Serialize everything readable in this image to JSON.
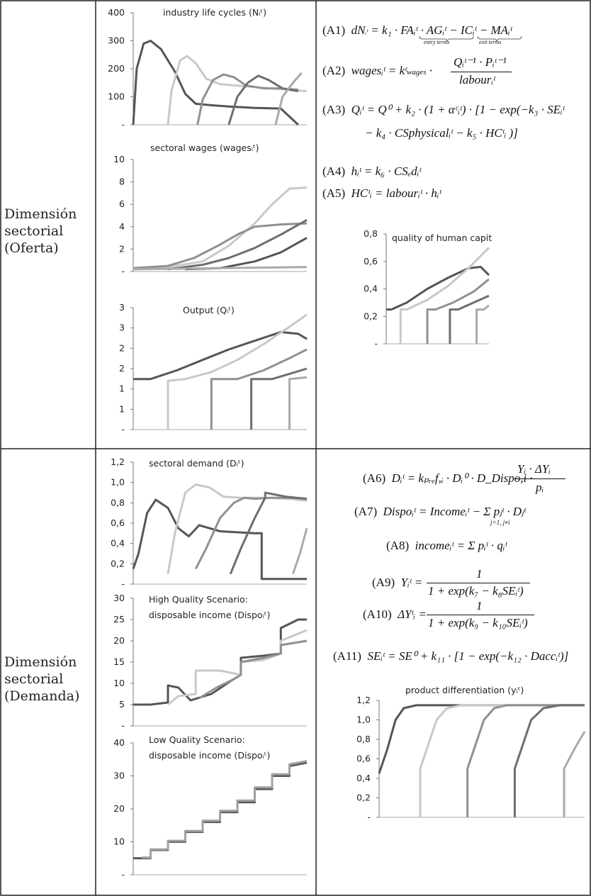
{
  "rows": {
    "supply": {
      "line1": "Dimensión",
      "line2": "sectorial",
      "line3": "(Oferta)"
    },
    "demand": {
      "line1": "Dimensión",
      "line2": "sectorial",
      "line3": "(Demanda)"
    }
  },
  "equations": {
    "a1_id": "(A1)",
    "a1_lhs": "dN",
    "a1_rhs": "= k₁ · FAᵢᵗ · AGᵢᵗ − ICᵢᵗ − MAᵢᵗ",
    "a1_entry": "entry terms",
    "a1_exit": "exit terms",
    "a2_id": "(A2)",
    "a2_lhs": "wagesᵢᵗ = kᵗ",
    "a2_sub": "wages",
    "a2_num": "Qᵢᵗ⁻¹ · Pᵢᵗ⁻¹",
    "a2_den": "labourᵢᵗ",
    "a3_id": "(A3)",
    "a3_line1": "Qᵢᵗ = Q⁰ + k₂ · (1 + αᶜᵢᵗ) · [1 − exp(−k₃ · SEᵢᵗ",
    "a3_line2": "− k₄ · CSphysicalᵢᵗ − k₅ · HCᵗᵢ )]",
    "a4_id": "(A4)",
    "a4_body": "hᵢᵗ = k₆ · CSₑdᵢᵗ",
    "a5_id": "(A5)",
    "a5_body": "HCᵗᵢ = labourᵢᵗ · hᵢᵗ",
    "a6_id": "(A6)",
    "a6_lhs": "Dᵢᵗ = kₚᵣₑf,ᵢ · Dᵢ⁰ · D_Dispo,i ·",
    "a6_num": "Yᵢ · ΔYᵢ",
    "a6_den": "pᵢ",
    "a7_id": "(A7)",
    "a7_body": "Dispoᵢᵗ = Incomeᵢᵗ − Σ pⱼᵗ · Dⱼᵗ",
    "a7_sum": "j=1, j≠i",
    "a8_id": "(A8)",
    "a8_body": "incomeᵢᵗ = Σ pᵢᵗ · qᵢᵗ",
    "a9_id": "(A9)",
    "a9_lhs": "Yᵢᵗ =",
    "a9_num": "1",
    "a9_den": "1 + exp(k₇ − k₈SEᵢᵗ)",
    "a10_id": "(A10)",
    "a10_lhs": "ΔYᵗᵢ =",
    "a10_num": "1",
    "a10_den": "1 + exp(k₉ − k₁₀SEᵢᵗ)",
    "a11_id": "(A11)",
    "a11_body": "SEᵢᵗ = SE⁰ + k₁₁ · [1 − exp(−k₁₂ · Daccᵢᵗ)]"
  },
  "chart_data": [
    {
      "id": "life",
      "type": "line",
      "title": "industry life cycles (Nᵢᵗ)",
      "ylim": [
        0,
        400
      ],
      "yticks": [
        "400",
        "300",
        "200",
        "100",
        "-"
      ],
      "series": [
        {
          "color": "#555555",
          "x": [
            0,
            0.02,
            0.06,
            0.1,
            0.16,
            0.24,
            0.3,
            0.36,
            0.44,
            0.55,
            0.7,
            0.85,
            0.95
          ],
          "y": [
            0,
            200,
            290,
            300,
            270,
            190,
            110,
            75,
            70,
            65,
            60,
            58,
            0
          ]
        },
        {
          "color": "#c8c8c8",
          "x": [
            0.2,
            0.22,
            0.27,
            0.31,
            0.36,
            0.42,
            0.5,
            0.6,
            0.7,
            0.8,
            0.9,
            1.0
          ],
          "y": [
            0,
            120,
            230,
            245,
            220,
            165,
            145,
            140,
            135,
            130,
            125,
            120
          ]
        },
        {
          "color": "#909090",
          "x": [
            0.37,
            0.4,
            0.46,
            0.52,
            0.58,
            0.65,
            0.75,
            0.85,
            0.95
          ],
          "y": [
            0,
            90,
            160,
            180,
            170,
            140,
            130,
            130,
            125
          ]
        },
        {
          "color": "#6e6e6e",
          "x": [
            0.55,
            0.6,
            0.66,
            0.72,
            0.78,
            0.86,
            0.95
          ],
          "y": [
            0,
            100,
            150,
            175,
            160,
            130,
            120
          ]
        },
        {
          "color": "#a8a8a8",
          "x": [
            0.82,
            0.86,
            0.92,
            0.97
          ],
          "y": [
            0,
            100,
            150,
            185
          ]
        }
      ]
    },
    {
      "id": "wages",
      "type": "line",
      "title": "sectoral wages (wagesᵢᵗ)",
      "ylim": [
        0,
        10
      ],
      "yticks": [
        "10",
        "8",
        "6",
        "4",
        "2",
        "-"
      ],
      "series": [
        {
          "color": "#c8c8c8",
          "x": [
            0,
            0.2,
            0.4,
            0.55,
            0.7,
            0.8,
            0.9,
            1.0
          ],
          "y": [
            0.3,
            0.4,
            0.9,
            2.3,
            4.3,
            6.0,
            7.4,
            7.5
          ]
        },
        {
          "color": "#909090",
          "x": [
            0,
            0.2,
            0.35,
            0.5,
            0.6,
            0.7,
            0.85,
            1.0
          ],
          "y": [
            0.3,
            0.5,
            1.2,
            2.4,
            3.3,
            4.0,
            4.2,
            4.3
          ]
        },
        {
          "color": "#6e6e6e",
          "x": [
            0.2,
            0.4,
            0.55,
            0.7,
            0.85,
            1.0
          ],
          "y": [
            0.2,
            0.6,
            1.2,
            2.1,
            3.3,
            4.6
          ]
        },
        {
          "color": "#555555",
          "x": [
            0.3,
            0.5,
            0.7,
            0.85,
            1.0
          ],
          "y": [
            0.2,
            0.3,
            0.9,
            1.7,
            3.0
          ]
        },
        {
          "color": "#aaaaaa",
          "x": [
            0.0,
            0.5,
            1.0
          ],
          "y": [
            0.2,
            0.3,
            0.4
          ]
        }
      ]
    },
    {
      "id": "output",
      "type": "line",
      "title": "Output (Qᵢᵗ)",
      "ylim": [
        0,
        3.5
      ],
      "yticks": [
        "3",
        "3",
        "2",
        "2",
        "1",
        "1",
        "-"
      ],
      "series": [
        {
          "color": "#555555",
          "x": [
            0,
            0.1,
            0.25,
            0.4,
            0.55,
            0.7,
            0.85,
            0.95,
            1.0
          ],
          "y": [
            1.45,
            1.45,
            1.7,
            2.0,
            2.3,
            2.55,
            2.8,
            2.75,
            2.6
          ]
        },
        {
          "color": "#c8c8c8",
          "x": [
            0.2,
            0.2,
            0.3,
            0.45,
            0.6,
            0.75,
            0.9,
            1.0
          ],
          "y": [
            0,
            1.4,
            1.45,
            1.65,
            2.0,
            2.45,
            2.95,
            3.3
          ]
        },
        {
          "color": "#909090",
          "x": [
            0.45,
            0.45,
            0.6,
            0.75,
            0.9,
            1.0
          ],
          "y": [
            0,
            1.45,
            1.45,
            1.7,
            2.05,
            2.3
          ]
        },
        {
          "color": "#6e6e6e",
          "x": [
            0.68,
            0.68,
            0.8,
            0.9,
            1.0
          ],
          "y": [
            0,
            1.45,
            1.45,
            1.6,
            1.75
          ]
        },
        {
          "color": "#aaaaaa",
          "x": [
            0.9,
            0.9,
            1.0
          ],
          "y": [
            0,
            1.45,
            1.5
          ]
        }
      ]
    },
    {
      "id": "human",
      "type": "line",
      "title": "quality of human capital (hᵢᵗ)",
      "ylim": [
        0,
        0.8
      ],
      "yticks": [
        "0,8",
        "0,6",
        "0,4",
        "0,2",
        "-"
      ],
      "series": [
        {
          "color": "#555555",
          "x": [
            0,
            0.05,
            0.2,
            0.4,
            0.6,
            0.8,
            0.92,
            1.0
          ],
          "y": [
            0.25,
            0.25,
            0.3,
            0.4,
            0.48,
            0.55,
            0.56,
            0.5
          ]
        },
        {
          "color": "#c8c8c8",
          "x": [
            0.14,
            0.14,
            0.2,
            0.4,
            0.6,
            0.8,
            1.0
          ],
          "y": [
            0,
            0.25,
            0.25,
            0.32,
            0.42,
            0.55,
            0.7
          ]
        },
        {
          "color": "#909090",
          "x": [
            0.4,
            0.4,
            0.48,
            0.65,
            0.85,
            1.0
          ],
          "y": [
            0,
            0.25,
            0.25,
            0.3,
            0.38,
            0.47
          ]
        },
        {
          "color": "#6e6e6e",
          "x": [
            0.62,
            0.62,
            0.7,
            0.85,
            1.0
          ],
          "y": [
            0,
            0.25,
            0.25,
            0.3,
            0.35
          ]
        },
        {
          "color": "#aaaaaa",
          "x": [
            0.88,
            0.88,
            0.95,
            1.0
          ],
          "y": [
            0,
            0.25,
            0.25,
            0.28
          ]
        }
      ]
    },
    {
      "id": "demand",
      "type": "line",
      "title": "sectoral demand (Dᵢᵗ)",
      "ylim": [
        0,
        1.2
      ],
      "yticks": [
        "1,2",
        "1,0",
        "0,8",
        "0,6",
        "0,4",
        "0,2",
        "-"
      ],
      "series": [
        {
          "color": "#555555",
          "x": [
            0,
            0.03,
            0.08,
            0.13,
            0.2,
            0.26,
            0.32,
            0.38,
            0.5,
            0.7,
            0.74,
            0.74,
            1.0
          ],
          "y": [
            0.15,
            0.3,
            0.7,
            0.83,
            0.75,
            0.55,
            0.47,
            0.58,
            0.52,
            0.5,
            0.5,
            0.05,
            0.05
          ]
        },
        {
          "color": "#c8c8c8",
          "x": [
            0.2,
            0.24,
            0.3,
            0.36,
            0.44,
            0.52,
            0.62,
            0.75,
            0.9,
            1.0
          ],
          "y": [
            0.1,
            0.5,
            0.9,
            0.98,
            0.95,
            0.86,
            0.85,
            0.85,
            0.84,
            0.82
          ]
        },
        {
          "color": "#909090",
          "x": [
            0.36,
            0.42,
            0.5,
            0.58,
            0.64,
            0.7,
            0.8,
            0.9,
            1.0
          ],
          "y": [
            0.15,
            0.35,
            0.65,
            0.8,
            0.85,
            0.84,
            0.85,
            0.85,
            0.84
          ]
        },
        {
          "color": "#6e6e6e",
          "x": [
            0.56,
            0.62,
            0.7,
            0.76,
            0.76,
            0.88,
            1.0
          ],
          "y": [
            0.1,
            0.35,
            0.65,
            0.85,
            0.9,
            0.86,
            0.84
          ]
        },
        {
          "color": "#aaaaaa",
          "x": [
            0.92,
            0.96,
            1.0
          ],
          "y": [
            0.1,
            0.3,
            0.55
          ]
        }
      ]
    },
    {
      "id": "hq",
      "type": "line",
      "title": "High Quality Scenario:",
      "title2": "disposable income (Dispoᵢᵗ)",
      "ylim": [
        0,
        30
      ],
      "yticks": [
        "30",
        "25",
        "20",
        "15",
        "10",
        "5",
        "-"
      ],
      "series": [
        {
          "color": "#555555",
          "x": [
            0,
            0.1,
            0.2,
            0.2,
            0.26,
            0.33,
            0.33,
            0.45,
            0.56,
            0.62,
            0.62,
            0.75,
            0.85,
            0.85,
            0.95,
            1.0
          ],
          "y": [
            5,
            5,
            5.5,
            9.5,
            9,
            6,
            6,
            7.5,
            10.5,
            12,
            16,
            16.5,
            17,
            23,
            25,
            25
          ]
        },
        {
          "color": "#c8c8c8",
          "x": [
            0.2,
            0.26,
            0.36,
            0.36,
            0.5,
            0.62,
            0.62,
            0.75,
            0.85,
            0.85,
            1.0
          ],
          "y": [
            5,
            7,
            7.5,
            13,
            13,
            12,
            15,
            15.5,
            17,
            20,
            22.5
          ]
        },
        {
          "color": "#909090",
          "x": [
            0.38,
            0.48,
            0.58,
            0.62,
            0.62,
            0.75,
            0.85,
            0.85,
            1.0
          ],
          "y": [
            6.5,
            9,
            11,
            12,
            15,
            16,
            17,
            19,
            20
          ]
        }
      ]
    },
    {
      "id": "lq",
      "type": "line",
      "title": "Low Quality Scenario:",
      "title2": "disposable income (Dispoᵢᵗ)",
      "ylim": [
        0,
        40
      ],
      "yticks": [
        "40",
        "30",
        "20",
        "10",
        "-"
      ],
      "series": [
        {
          "color": "#555555",
          "x": [
            0,
            0.1,
            0.1,
            0.2,
            0.2,
            0.3,
            0.3,
            0.4,
            0.4,
            0.5,
            0.5,
            0.6,
            0.6,
            0.7,
            0.7,
            0.8,
            0.8,
            0.9,
            0.9,
            1.0
          ],
          "y": [
            5,
            5,
            7.5,
            7.5,
            10,
            10,
            13,
            13,
            16,
            16,
            19,
            19,
            22,
            22,
            26,
            26,
            30,
            30,
            33,
            34
          ]
        },
        {
          "color": "#a0a0a0",
          "x": [
            0.05,
            0.1,
            0.1,
            0.2,
            0.2,
            0.3,
            0.3,
            0.4,
            0.4,
            0.5,
            0.5,
            0.6,
            0.6,
            0.7,
            0.7,
            0.8,
            0.8,
            0.9,
            0.9,
            1.0
          ],
          "y": [
            5.2,
            5.2,
            7.7,
            7.7,
            10.3,
            10.3,
            13.3,
            13.3,
            16.4,
            16.4,
            19.4,
            19.4,
            22.5,
            22.5,
            26.5,
            26.5,
            30.5,
            30.5,
            33.5,
            34.5
          ]
        }
      ]
    },
    {
      "id": "diff",
      "type": "line",
      "title": "product differentiation (yᵢᵗ)",
      "ylim": [
        0,
        1.2
      ],
      "yticks": [
        "1,2",
        "1,0",
        "0,8",
        "0,6",
        "0,4",
        "0,2",
        "-"
      ],
      "series": [
        {
          "color": "#555555",
          "x": [
            0,
            0.04,
            0.08,
            0.12,
            0.18,
            0.3,
            1.0
          ],
          "y": [
            0.45,
            0.7,
            1.0,
            1.12,
            1.15,
            1.15,
            1.15
          ]
        },
        {
          "color": "#c8c8c8",
          "x": [
            0.2,
            0.2,
            0.24,
            0.28,
            0.33,
            0.4,
            0.5,
            1.0
          ],
          "y": [
            0,
            0.5,
            0.75,
            1.0,
            1.12,
            1.15,
            1.15,
            1.15
          ]
        },
        {
          "color": "#909090",
          "x": [
            0.43,
            0.43,
            0.47,
            0.51,
            0.56,
            0.62,
            1.0
          ],
          "y": [
            0,
            0.5,
            0.75,
            1.0,
            1.12,
            1.15,
            1.15
          ]
        },
        {
          "color": "#6e6e6e",
          "x": [
            0.66,
            0.66,
            0.7,
            0.74,
            0.8,
            0.88,
            1.0
          ],
          "y": [
            0,
            0.5,
            0.75,
            1.0,
            1.12,
            1.15,
            1.15
          ]
        },
        {
          "color": "#aaaaaa",
          "x": [
            0.9,
            0.9,
            0.95,
            1.0
          ],
          "y": [
            0,
            0.5,
            0.7,
            0.88
          ]
        }
      ]
    }
  ]
}
